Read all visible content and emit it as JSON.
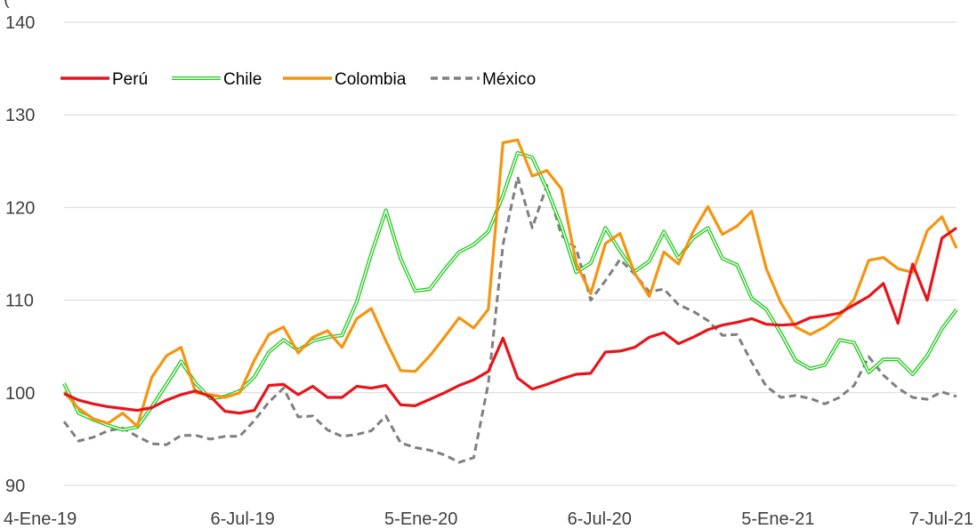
{
  "chart_data": {
    "type": "line",
    "title_fragment": "(",
    "ylim": [
      90,
      140
    ],
    "y_ticks": [
      "90",
      "100",
      "110",
      "120",
      "130",
      "140"
    ],
    "x_ticks": [
      "4-Ene-19",
      "6-Jul-19",
      "5-Ene-20",
      "6-Jul-20",
      "5-Ene-21",
      "7-Jul-21"
    ],
    "grid": "horizontal",
    "legend_position": "top-left",
    "series": [
      {
        "name": "Perú",
        "color": "#e8141b",
        "style": "solid",
        "values": [
          99.9,
          99.2,
          98.8,
          98.5,
          98.3,
          98.1,
          98.4,
          99.2,
          99.8,
          100.2,
          99.6,
          98.0,
          97.8,
          98.1,
          100.8,
          100.9,
          99.8,
          100.7,
          99.5,
          99.5,
          100.7,
          100.5,
          100.8,
          98.7,
          98.6,
          99.3,
          100.0,
          100.8,
          101.4,
          102.3,
          105.9,
          101.6,
          100.4,
          100.9,
          101.5,
          102.0,
          102.1,
          104.4,
          104.5,
          104.9,
          106.0,
          106.5,
          105.3,
          106.0,
          106.8,
          107.3,
          107.6,
          108.0,
          107.4,
          107.3,
          107.4,
          108.1,
          108.3,
          108.6,
          109.5,
          110.4,
          111.8,
          107.5,
          113.9,
          110.0,
          116.7,
          117.8
        ]
      },
      {
        "name": "Chile",
        "color": "#21c81e",
        "style": "double",
        "values": [
          101.0,
          97.8,
          97.1,
          96.5,
          96.0,
          96.3,
          98.5,
          100.9,
          103.4,
          101.0,
          99.4,
          99.6,
          100.2,
          101.7,
          104.4,
          105.7,
          104.6,
          105.6,
          106.0,
          106.2,
          109.8,
          115.0,
          119.7,
          114.5,
          111.0,
          111.2,
          113.3,
          115.2,
          116.0,
          117.4,
          121.3,
          125.9,
          125.4,
          122.0,
          118.0,
          113.0,
          114.0,
          117.8,
          115.3,
          113.1,
          114.2,
          117.4,
          114.5,
          116.7,
          117.8,
          114.5,
          113.8,
          110.2,
          109.0,
          106.4,
          103.5,
          102.6,
          103.0,
          105.7,
          105.4,
          102.2,
          103.6,
          103.6,
          102.0,
          104.0,
          106.9,
          109.0
        ]
      },
      {
        "name": "Colombia",
        "color": "#f5950f",
        "style": "solid",
        "values": [
          100.1,
          98.3,
          97.2,
          96.7,
          97.8,
          96.4,
          101.7,
          104.0,
          104.9,
          100.0,
          99.8,
          99.5,
          100.0,
          103.5,
          106.3,
          107.1,
          104.3,
          106.0,
          106.7,
          104.9,
          108.0,
          109.1,
          105.6,
          102.4,
          102.3,
          104.0,
          106.0,
          108.1,
          107.0,
          109.0,
          127.0,
          127.3,
          123.4,
          124.0,
          122.0,
          114.0,
          110.7,
          116.1,
          117.2,
          112.9,
          110.4,
          115.2,
          113.9,
          117.4,
          120.1,
          117.1,
          118.0,
          119.6,
          113.4,
          109.7,
          107.1,
          106.3,
          107.1,
          108.3,
          110.1,
          114.3,
          114.6,
          113.4,
          113.0,
          117.5,
          119.0,
          115.6
        ]
      },
      {
        "name": "México",
        "color": "#7f7f7f",
        "style": "dashed",
        "values": [
          96.9,
          94.8,
          95.2,
          95.9,
          96.2,
          95.3,
          94.5,
          94.4,
          95.4,
          95.4,
          95.0,
          95.3,
          95.3,
          97.0,
          99.0,
          100.5,
          97.4,
          97.5,
          96.0,
          95.3,
          95.5,
          95.9,
          97.5,
          94.6,
          94.1,
          93.8,
          93.3,
          92.5,
          93.0,
          101.0,
          116.0,
          123.3,
          117.8,
          122.4,
          117.0,
          115.6,
          110.0,
          112.1,
          114.4,
          112.8,
          110.9,
          111.2,
          109.5,
          108.8,
          107.8,
          106.2,
          106.3,
          103.3,
          100.7,
          99.5,
          99.7,
          99.4,
          98.8,
          99.5,
          100.8,
          103.9,
          101.9,
          100.5,
          99.5,
          99.3,
          100.1,
          99.6
        ]
      }
    ]
  }
}
